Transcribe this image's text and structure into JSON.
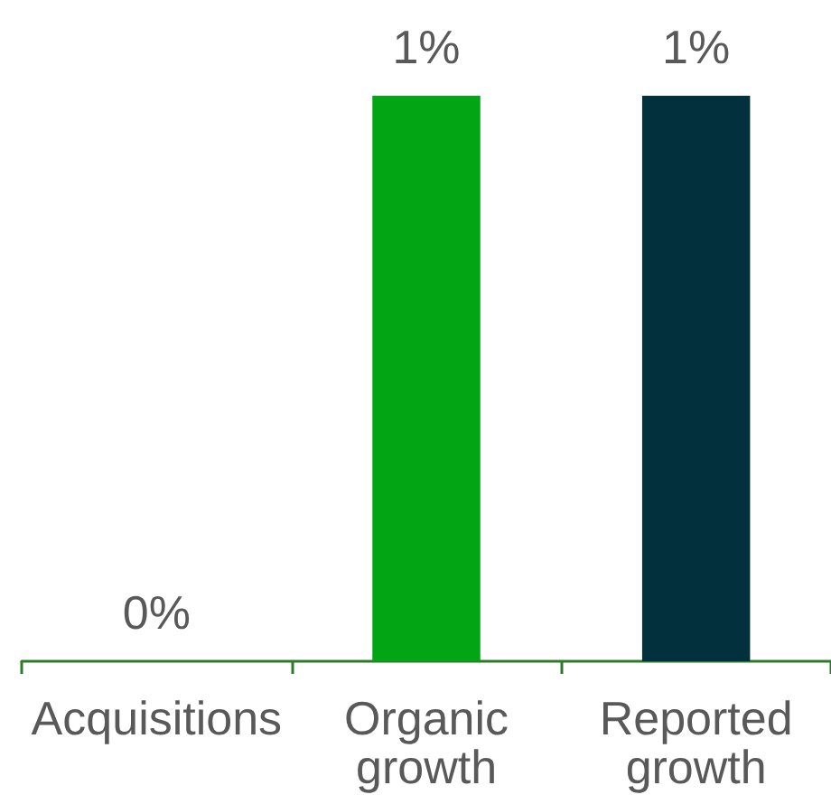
{
  "chart_data": {
    "type": "bar",
    "categories": [
      "Acquisitions",
      "Organic growth",
      "Reported growth"
    ],
    "values": [
      0,
      1,
      1
    ],
    "value_labels": [
      "0%",
      "1%",
      "1%"
    ],
    "colors": [
      "#02a514",
      "#02a514",
      "#02303c"
    ],
    "ylim": [
      0,
      1
    ],
    "tick_labels": "x"
  }
}
